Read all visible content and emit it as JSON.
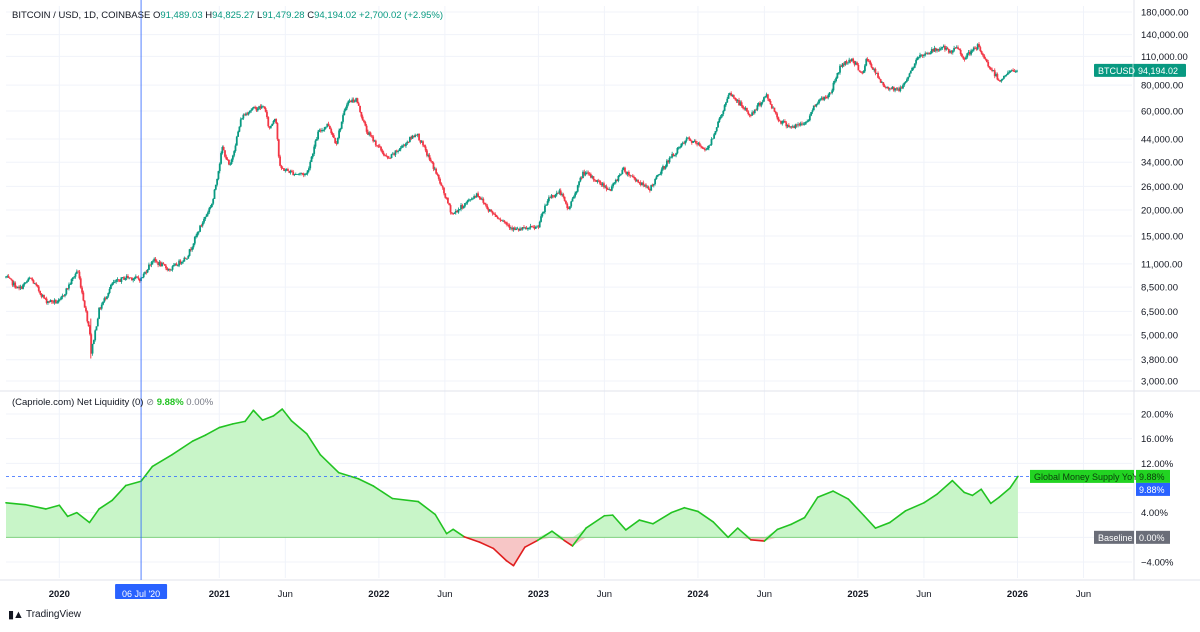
{
  "header": {
    "symbol": "BITCOIN / USD, 1D, COINBASE",
    "open_label": "O",
    "open": "91,489.03",
    "high_label": "H",
    "high": "94,825.27",
    "low_label": "L",
    "low": "91,479.28",
    "close_label": "C",
    "close": "94,194.02",
    "change": "+2,700.02 (+2.95%)"
  },
  "indicator_header": {
    "name": "(Capriole.com) Net Liquidity (0)",
    "icon": "eye-off-icon",
    "value": "9.88%",
    "baseline_value": "0.00%"
  },
  "cursor_date_label": "06 Jul '20",
  "branding": {
    "logo_icon": "tradingview-logo-icon",
    "name": "TradingView"
  },
  "colors": {
    "up": "#089981",
    "down": "#f23645",
    "grid": "#f0f3fa",
    "liquidity_line": "#22c322",
    "liquidity_fill": "#c8f5c8",
    "negative_line": "#e01e1e",
    "negative_fill": "#f7c6c6",
    "cursor": "#2962ff",
    "price_tag": "#089981"
  },
  "chart_data": [
    {
      "type": "line",
      "title": "BITCOIN / USD, 1D, COINBASE",
      "series_name": "BTCUSD",
      "y_scale": "log",
      "y_ticks": [
        "180,000.00",
        "140,000.00",
        "110,000.00",
        "80,000.00",
        "60,000.00",
        "44,000.00",
        "34,000.00",
        "26,000.00",
        "20,000.00",
        "15,000.00",
        "11,000.00",
        "8,500.00",
        "6,500.00",
        "5,000.00",
        "3,800.00",
        "3,000.00"
      ],
      "y_tick_values": [
        180000,
        140000,
        110000,
        80000,
        60000,
        44000,
        34000,
        26000,
        20000,
        15000,
        11000,
        8500,
        6500,
        5000,
        3800,
        3000
      ],
      "last_price_label": "94,194.02",
      "points": [
        [
          "2019-09-01",
          9500
        ],
        [
          "2019-10-01",
          8300
        ],
        [
          "2019-10-27",
          9400
        ],
        [
          "2019-12-01",
          7300
        ],
        [
          "2020-01-01",
          7200
        ],
        [
          "2020-02-12",
          10300
        ],
        [
          "2020-03-12",
          5000
        ],
        [
          "2020-03-13",
          4000
        ],
        [
          "2020-04-01",
          6600
        ],
        [
          "2020-05-01",
          8800
        ],
        [
          "2020-06-01",
          9500
        ],
        [
          "2020-07-06",
          9300
        ],
        [
          "2020-08-01",
          11500
        ],
        [
          "2020-09-10",
          10300
        ],
        [
          "2020-10-20",
          12000
        ],
        [
          "2020-11-15",
          16000
        ],
        [
          "2020-12-17",
          22000
        ],
        [
          "2021-01-08",
          40000
        ],
        [
          "2021-01-25",
          32000
        ],
        [
          "2021-02-21",
          56000
        ],
        [
          "2021-03-13",
          61000
        ],
        [
          "2021-04-14",
          63000
        ],
        [
          "2021-04-25",
          49000
        ],
        [
          "2021-05-10",
          57000
        ],
        [
          "2021-05-19",
          32000
        ],
        [
          "2021-06-22",
          30000
        ],
        [
          "2021-07-20",
          29800
        ],
        [
          "2021-08-15",
          47000
        ],
        [
          "2021-09-07",
          52000
        ],
        [
          "2021-09-25",
          42000
        ],
        [
          "2021-10-20",
          66000
        ],
        [
          "2021-11-10",
          68500
        ],
        [
          "2021-12-04",
          48000
        ],
        [
          "2022-01-22",
          35000
        ],
        [
          "2022-03-28",
          47000
        ],
        [
          "2022-05-10",
          31000
        ],
        [
          "2022-06-18",
          19000
        ],
        [
          "2022-08-14",
          24000
        ],
        [
          "2022-09-10",
          20000
        ],
        [
          "2022-11-09",
          16000
        ],
        [
          "2022-12-30",
          16500
        ],
        [
          "2023-01-25",
          23000
        ],
        [
          "2023-02-20",
          24500
        ],
        [
          "2023-03-10",
          20000
        ],
        [
          "2023-04-14",
          30500
        ],
        [
          "2023-06-15",
          25000
        ],
        [
          "2023-07-13",
          31500
        ],
        [
          "2023-09-11",
          25000
        ],
        [
          "2023-10-24",
          34500
        ],
        [
          "2023-12-08",
          44000
        ],
        [
          "2024-01-23",
          39000
        ],
        [
          "2024-02-28",
          61000
        ],
        [
          "2024-03-14",
          73000
        ],
        [
          "2024-05-01",
          57000
        ],
        [
          "2024-06-05",
          71500
        ],
        [
          "2024-07-05",
          54000
        ],
        [
          "2024-08-05",
          50000
        ],
        [
          "2024-09-06",
          53000
        ],
        [
          "2024-09-27",
          66000
        ],
        [
          "2024-10-29",
          72500
        ],
        [
          "2024-11-22",
          99000
        ],
        [
          "2024-12-17",
          107000
        ],
        [
          "2025-01-13",
          90000
        ],
        [
          "2025-01-21",
          108000
        ],
        [
          "2025-02-28",
          79000
        ],
        [
          "2025-04-08",
          76000
        ],
        [
          "2025-05-22",
          111000
        ],
        [
          "2025-07-14",
          122000
        ],
        [
          "2025-08-02",
          113000
        ],
        [
          "2025-08-14",
          123000
        ],
        [
          "2025-09-01",
          108000
        ],
        [
          "2025-10-06",
          125000
        ],
        [
          "2025-10-11",
          111000
        ],
        [
          "2025-11-21",
          84000
        ],
        [
          "2025-12-10",
          92000
        ],
        [
          "2026-01-02",
          94194
        ]
      ]
    },
    {
      "type": "area",
      "title": "(Capriole.com) Net Liquidity (0)",
      "series_name": "Global Money Supply YoY",
      "baseline_name": "Baseline",
      "y_ticks": [
        "20.00%",
        "16.00%",
        "12.00%",
        "8.00%",
        "4.00%",
        "0.00%",
        "−4.00%"
      ],
      "y_tick_values": [
        20,
        16,
        12,
        8,
        4,
        0,
        -4
      ],
      "last_value_label": "9.88%",
      "cursor_value_label": "9.88%",
      "baseline_label": "0.00%",
      "points": [
        [
          "2019-09-01",
          5.6
        ],
        [
          "2019-10-15",
          5.3
        ],
        [
          "2019-12-01",
          4.6
        ],
        [
          "2020-01-01",
          5.2
        ],
        [
          "2020-01-20",
          3.4
        ],
        [
          "2020-02-10",
          4.0
        ],
        [
          "2020-03-10",
          2.4
        ],
        [
          "2020-04-01",
          4.6
        ],
        [
          "2020-05-01",
          6.0
        ],
        [
          "2020-06-01",
          8.4
        ],
        [
          "2020-07-06",
          9.1
        ],
        [
          "2020-08-01",
          11.5
        ],
        [
          "2020-09-15",
          13.4
        ],
        [
          "2020-11-01",
          15.6
        ],
        [
          "2020-12-01",
          16.6
        ],
        [
          "2021-01-01",
          17.8
        ],
        [
          "2021-02-01",
          18.4
        ],
        [
          "2021-03-01",
          18.8
        ],
        [
          "2021-03-20",
          20.6
        ],
        [
          "2021-04-10",
          19.0
        ],
        [
          "2021-05-05",
          19.7
        ],
        [
          "2021-05-25",
          20.8
        ],
        [
          "2021-06-15",
          18.9
        ],
        [
          "2021-07-20",
          16.8
        ],
        [
          "2021-08-20",
          13.4
        ],
        [
          "2021-10-01",
          10.5
        ],
        [
          "2021-11-15",
          9.5
        ],
        [
          "2021-12-20",
          8.3
        ],
        [
          "2022-02-01",
          6.3
        ],
        [
          "2022-04-01",
          5.8
        ],
        [
          "2022-05-10",
          3.7
        ],
        [
          "2022-06-05",
          0.6
        ],
        [
          "2022-06-20",
          1.3
        ],
        [
          "2022-07-15",
          0.1
        ],
        [
          "2022-08-20",
          -0.8
        ],
        [
          "2022-09-20",
          -1.8
        ],
        [
          "2022-10-20",
          -3.8
        ],
        [
          "2022-11-05",
          -4.6
        ],
        [
          "2022-12-01",
          -1.6
        ],
        [
          "2022-12-30",
          -0.5
        ],
        [
          "2023-02-01",
          1.0
        ],
        [
          "2023-03-01",
          -0.5
        ],
        [
          "2023-03-20",
          -1.4
        ],
        [
          "2023-04-20",
          1.5
        ],
        [
          "2023-06-01",
          3.5
        ],
        [
          "2023-06-20",
          3.6
        ],
        [
          "2023-07-20",
          1.2
        ],
        [
          "2023-08-20",
          2.8
        ],
        [
          "2023-09-20",
          2.2
        ],
        [
          "2023-11-01",
          4.0
        ],
        [
          "2023-12-01",
          4.8
        ],
        [
          "2024-01-01",
          4.2
        ],
        [
          "2024-02-05",
          2.5
        ],
        [
          "2024-03-10",
          0.0
        ],
        [
          "2024-04-01",
          1.5
        ],
        [
          "2024-05-01",
          -0.4
        ],
        [
          "2024-06-01",
          -0.6
        ],
        [
          "2024-07-01",
          1.3
        ],
        [
          "2024-08-01",
          2.1
        ],
        [
          "2024-09-01",
          3.2
        ],
        [
          "2024-10-01",
          6.5
        ],
        [
          "2024-11-05",
          7.5
        ],
        [
          "2024-12-10",
          6.2
        ],
        [
          "2025-01-15",
          3.5
        ],
        [
          "2025-02-10",
          1.5
        ],
        [
          "2025-03-15",
          2.4
        ],
        [
          "2025-04-20",
          4.3
        ],
        [
          "2025-06-01",
          5.6
        ],
        [
          "2025-07-01",
          7.0
        ],
        [
          "2025-08-05",
          9.2
        ],
        [
          "2025-09-01",
          7.3
        ],
        [
          "2025-09-20",
          6.8
        ],
        [
          "2025-10-10",
          7.8
        ],
        [
          "2025-11-01",
          5.5
        ],
        [
          "2025-11-20",
          6.5
        ],
        [
          "2025-12-15",
          8.0
        ],
        [
          "2026-01-02",
          9.88
        ]
      ]
    }
  ],
  "x_axis": {
    "ticks": [
      {
        "label": "2020",
        "date": "2020-01-01",
        "bold": true
      },
      {
        "label": "2021",
        "date": "2021-01-01",
        "bold": true
      },
      {
        "label": "Jun",
        "date": "2021-06-01",
        "bold": false
      },
      {
        "label": "2022",
        "date": "2022-01-01",
        "bold": true
      },
      {
        "label": "Jun",
        "date": "2022-06-01",
        "bold": false
      },
      {
        "label": "2023",
        "date": "2023-01-01",
        "bold": true
      },
      {
        "label": "Jun",
        "date": "2023-06-01",
        "bold": false
      },
      {
        "label": "2024",
        "date": "2024-01-01",
        "bold": true
      },
      {
        "label": "Jun",
        "date": "2024-06-01",
        "bold": false
      },
      {
        "label": "2025",
        "date": "2025-01-01",
        "bold": true
      },
      {
        "label": "Jun",
        "date": "2025-06-01",
        "bold": false
      },
      {
        "label": "2026",
        "date": "2026-01-01",
        "bold": true
      },
      {
        "label": "Jun",
        "date": "2026-06-01",
        "bold": false
      }
    ],
    "cursor_date": "2020-07-06"
  }
}
